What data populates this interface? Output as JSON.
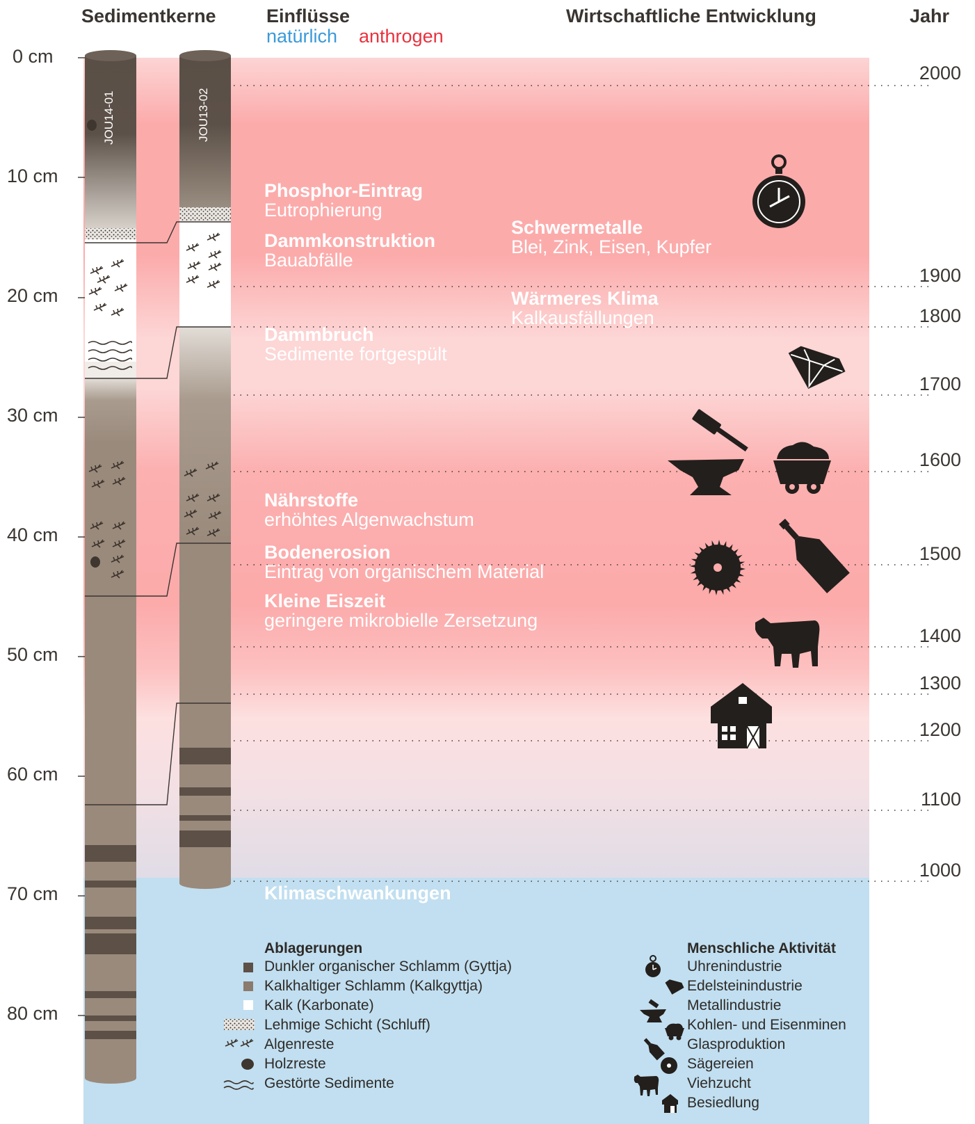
{
  "header": {
    "cores": "Sedimentkerne",
    "influences": "Einflüsse",
    "natural": "natürlich",
    "anthropogenic": "anthrogen",
    "economy": "Wirtschaftliche Entwicklung",
    "year": "Jahr"
  },
  "colors": {
    "natural": "#3a9ad9",
    "anthropogenic": "#e8323f",
    "pink_strong": "#fca8a8",
    "pink_light": "#fdd4d4",
    "blue_bg": "#c1dff0",
    "dark_mud": "#5c5047",
    "calc_mud": "#9a8a7c",
    "icon": "#231f1c"
  },
  "depth_labels": [
    "0 cm",
    "10 cm",
    "20 cm",
    "30 cm",
    "40 cm",
    "50 cm",
    "60 cm",
    "70 cm",
    "80 cm"
  ],
  "cores": [
    {
      "id": "JOU14-01"
    },
    {
      "id": "JOU13-02"
    }
  ],
  "years": [
    "2000",
    "1900",
    "1800",
    "1700",
    "1600",
    "1500",
    "1400",
    "1300",
    "1200",
    "1100",
    "1000"
  ],
  "events": [
    {
      "title": "Phosphor-Eintrag",
      "subtitle": "Eutrophierung"
    },
    {
      "title": "Dammkonstruktion",
      "subtitle": "Bauabfälle"
    },
    {
      "title": "Schwermetalle",
      "subtitle": "Blei, Zink, Eisen, Kupfer"
    },
    {
      "title": "Wärmeres Klima",
      "subtitle": "Kalkausfällungen"
    },
    {
      "title": "Dammbruch",
      "subtitle": "Sedimente fortgespült"
    },
    {
      "title": "Nährstoffe",
      "subtitle": "erhöhtes Algenwachstum"
    },
    {
      "title": "Bodenerosion",
      "subtitle": "Eintrag von organischem Material"
    },
    {
      "title": "Kleine Eiszeit",
      "subtitle": "geringere mikrobielle Zersetzung"
    },
    {
      "title": "Klimaschwankungen",
      "subtitle": ""
    }
  ],
  "legend_deposits": {
    "title": "Ablagerungen",
    "items": [
      {
        "label": "Dunkler organischer Schlamm (Gyttja)",
        "icon": "dark-mud-swatch"
      },
      {
        "label": "Kalkhaltiger Schlamm (Kalkgyttja)",
        "icon": "calc-mud-swatch"
      },
      {
        "label": "Kalk (Karbonate)",
        "icon": "lime-swatch"
      },
      {
        "label": "Lehmige Schicht (Schluff)",
        "icon": "silt-pattern"
      },
      {
        "label": "Algenreste",
        "icon": "algae-icon"
      },
      {
        "label": "Holzreste",
        "icon": "wood-icon"
      },
      {
        "label": "Gestörte Sedimente",
        "icon": "wave-icon"
      }
    ]
  },
  "legend_activity": {
    "title": "Menschliche Aktivität",
    "items": [
      {
        "label": "Uhrenindustrie",
        "icon": "pocket-watch-icon"
      },
      {
        "label": "Edelsteinindustrie",
        "icon": "gem-icon"
      },
      {
        "label": "Metallindustrie",
        "icon": "anvil-hammer-icon"
      },
      {
        "label": "Kohlen- und Eisenminen",
        "icon": "mine-cart-icon"
      },
      {
        "label": "Glasproduktion",
        "icon": "bottle-icon"
      },
      {
        "label": "Sägereien",
        "icon": "saw-blade-icon"
      },
      {
        "label": "Viehzucht",
        "icon": "cow-icon"
      },
      {
        "label": "Besiedlung",
        "icon": "farmhouse-icon"
      }
    ]
  }
}
